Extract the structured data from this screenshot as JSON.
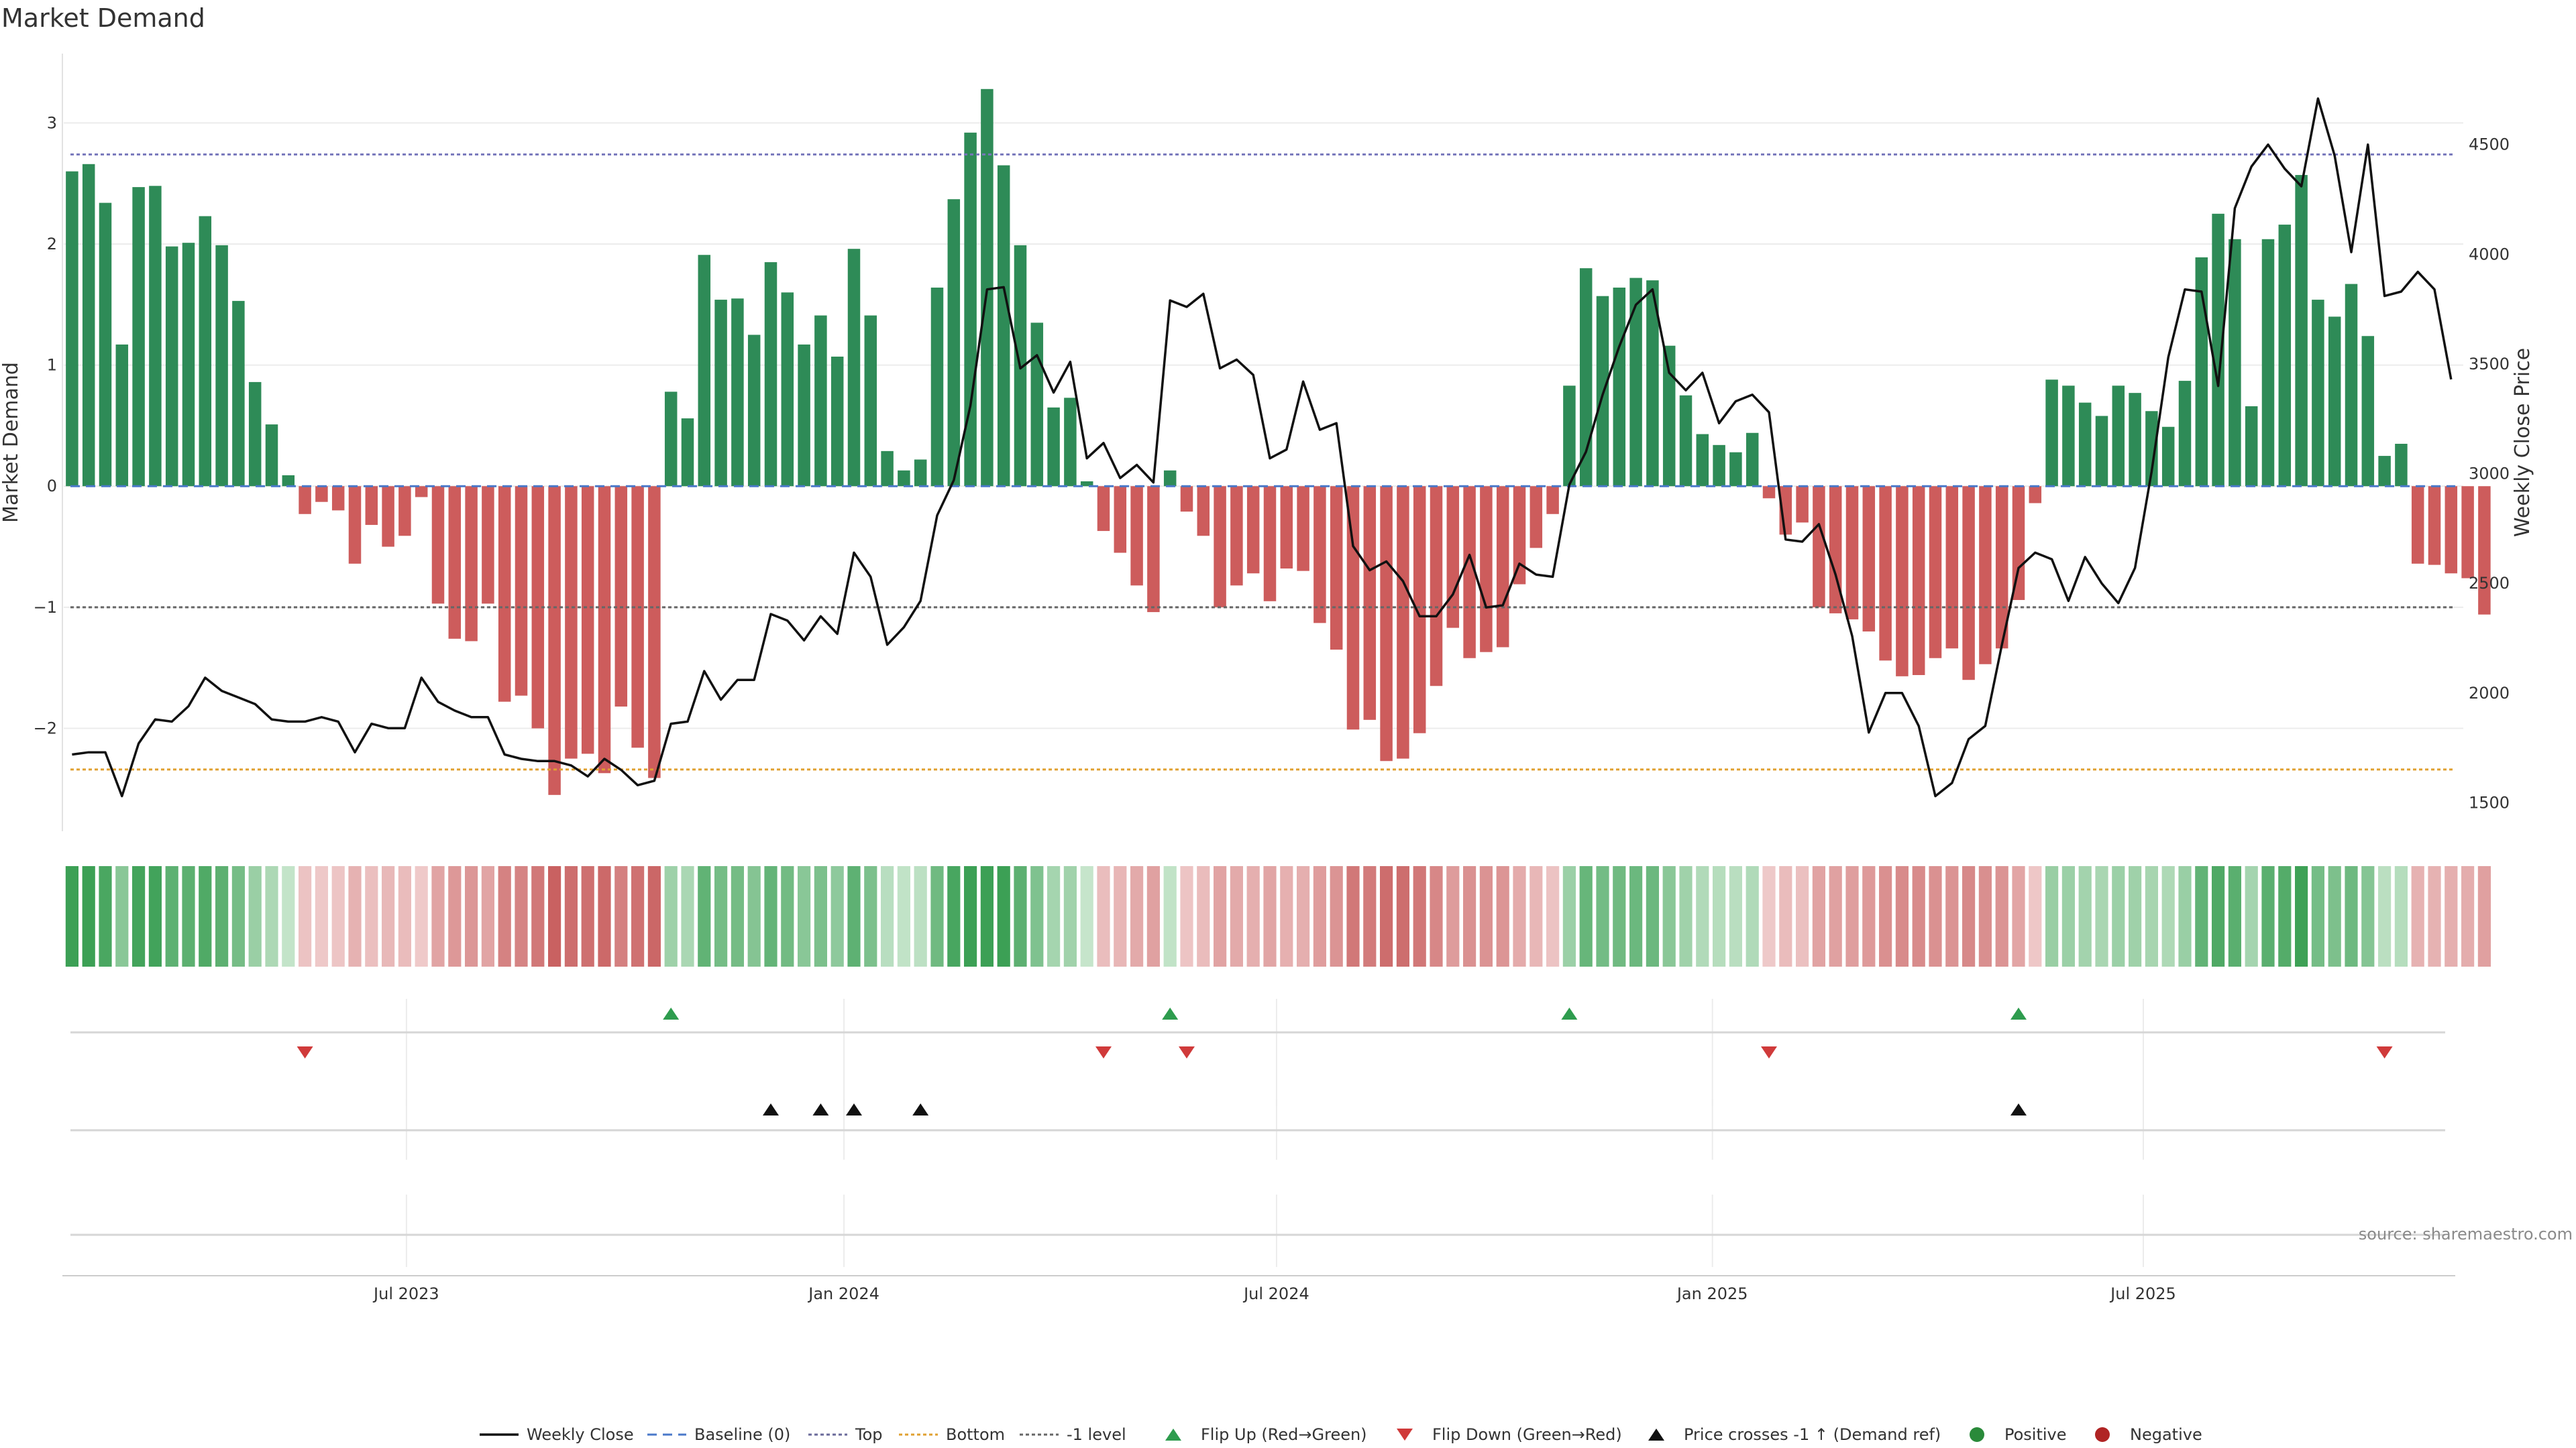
{
  "chart_data": {
    "type": "bar",
    "title": "Market Demand",
    "ylabel": "Market Demand",
    "y2label": "Weekly Close Price",
    "ylim": [
      -2.85,
      3.6
    ],
    "y2lim": [
      1370,
      4930
    ],
    "yticks": [
      3,
      2,
      1,
      0,
      -1,
      -2
    ],
    "ytick_labels": [
      "3",
      "2",
      "1",
      "0",
      "−1",
      "−2"
    ],
    "y2ticks": [
      4500,
      4000,
      3500,
      3000,
      2500,
      2000,
      1500
    ],
    "y2tick_labels": [
      "4500",
      "4000",
      "3500",
      "3000",
      "2500",
      "2000",
      "1500"
    ],
    "x_start": "2023-02-13",
    "weeks": 144,
    "xticks": [
      {
        "label": "Jul 2023",
        "week": 20.6
      },
      {
        "label": "Jan 2024",
        "week": 46.9
      },
      {
        "label": "Jul 2024",
        "week": 72.9
      },
      {
        "label": "Jan 2025",
        "week": 99.1
      },
      {
        "label": "Jul 2025",
        "week": 125.0
      }
    ],
    "reference_lines": {
      "top": 2.74,
      "baseline": 0,
      "minus_one": -1,
      "bottom": -2.34
    },
    "demand": [
      2.6,
      2.66,
      2.34,
      1.17,
      2.47,
      2.48,
      1.98,
      2.01,
      2.23,
      1.99,
      1.53,
      0.86,
      0.51,
      0.09,
      -0.23,
      -0.13,
      -0.2,
      -0.64,
      -0.32,
      -0.5,
      -0.41,
      -0.09,
      -0.97,
      -1.26,
      -1.28,
      -0.97,
      -1.78,
      -1.73,
      -2.0,
      -2.55,
      -2.25,
      -2.21,
      -2.37,
      -1.82,
      -2.16,
      -2.41,
      0.78,
      0.56,
      1.91,
      1.54,
      1.55,
      1.25,
      1.85,
      1.6,
      1.17,
      1.41,
      1.07,
      1.96,
      1.41,
      0.29,
      0.13,
      0.22,
      1.64,
      2.37,
      2.92,
      3.28,
      2.65,
      1.99,
      1.35,
      0.65,
      0.73,
      0.04,
      -0.37,
      -0.55,
      -0.82,
      -1.04,
      0.13,
      -0.21,
      -0.41,
      -1.0,
      -0.82,
      -0.72,
      -0.95,
      -0.68,
      -0.7,
      -1.13,
      -1.35,
      -2.01,
      -1.93,
      -2.27,
      -2.25,
      -2.04,
      -1.65,
      -1.17,
      -1.42,
      -1.37,
      -1.33,
      -0.81,
      -0.51,
      -0.23,
      0.83,
      1.8,
      1.57,
      1.64,
      1.72,
      1.7,
      1.16,
      0.75,
      0.43,
      0.34,
      0.28,
      0.44,
      -0.1,
      -0.4,
      -0.3,
      -1.0,
      -1.05,
      -1.1,
      -1.2,
      -1.44,
      -1.57,
      -1.56,
      -1.42,
      -1.34,
      -1.6,
      -1.47,
      -1.34,
      -0.94,
      -0.14,
      0.88,
      0.83,
      0.69,
      0.58,
      0.83,
      0.77,
      0.62,
      0.49,
      0.87,
      1.89,
      2.25,
      2.04,
      0.66,
      2.04,
      2.16,
      2.57,
      1.54,
      1.4,
      1.67,
      1.24,
      0.25,
      0.35,
      -0.64,
      -0.65,
      -0.72,
      -0.76,
      -1.06
    ],
    "price": [
      1720,
      1730,
      1730,
      1530,
      1770,
      1880,
      1870,
      1940,
      2070,
      2010,
      1980,
      1950,
      1880,
      1870,
      1870,
      1890,
      1870,
      1730,
      1860,
      1840,
      1840,
      2070,
      1960,
      1920,
      1890,
      1890,
      1720,
      1700,
      1690,
      1690,
      1670,
      1620,
      1700,
      1650,
      1580,
      1600,
      1860,
      1870,
      2100,
      1970,
      2060,
      2060,
      2360,
      2330,
      2240,
      2350,
      2270,
      2640,
      2530,
      2220,
      2300,
      2420,
      2810,
      2970,
      3310,
      3840,
      3850,
      3480,
      3540,
      3370,
      3510,
      3070,
      3140,
      2980,
      3040,
      2960,
      3790,
      3760,
      3820,
      3480,
      3520,
      3450,
      3070,
      3110,
      3420,
      3200,
      3230,
      2670,
      2560,
      2600,
      2510,
      2350,
      2350,
      2450,
      2630,
      2390,
      2400,
      2590,
      2540,
      2530,
      2950,
      3100,
      3360,
      3580,
      3770,
      3840,
      3460,
      3380,
      3460,
      3230,
      3330,
      3360,
      3280,
      2700,
      2690,
      2770,
      2540,
      2260,
      1820,
      2000,
      2000,
      1850,
      1530,
      1590,
      1790,
      1850,
      2220,
      2570,
      2640,
      2610,
      2420,
      2620,
      2500,
      2410,
      2570,
      3010,
      3530,
      3840,
      3830,
      3400,
      4210,
      4400,
      4500,
      4390,
      4310,
      4710,
      4450,
      4010,
      4500,
      3810,
      3830,
      3920,
      3840,
      3430
    ],
    "flip_up_weeks": [
      36,
      66,
      90,
      117
    ],
    "flip_down_weeks": [
      14,
      62,
      67,
      102,
      139
    ],
    "price_cross_weeks": [
      42,
      45,
      47,
      51,
      117
    ],
    "legend": [
      {
        "label": "Weekly Close",
        "symbol": "line",
        "color": "#111111"
      },
      {
        "label": "Baseline (0)",
        "symbol": "dash",
        "color": "#4a78c9"
      },
      {
        "label": "Top",
        "symbol": "dot",
        "color": "#6a6a9a"
      },
      {
        "label": "Bottom",
        "symbol": "dot",
        "color": "#e0a030"
      },
      {
        "label": "-1 level",
        "symbol": "dot",
        "color": "#666666"
      },
      {
        "label": "Flip Up (Red→Green)",
        "symbol": "triangle-up",
        "color": "#2e9c4e"
      },
      {
        "label": "Flip Down (Green→Red)",
        "symbol": "triangle-down",
        "color": "#d03a3a"
      },
      {
        "label": "Price crosses -1 ↑ (Demand ref)",
        "symbol": "triangle-up",
        "color": "#111111"
      },
      {
        "label": "Positive",
        "symbol": "circle",
        "color": "#2a8a3a"
      },
      {
        "label": "Negative",
        "symbol": "circle",
        "color": "#b02424"
      }
    ],
    "source": "source: sharemaestro.com"
  },
  "colors": {
    "positive_bar": "#2e8b57",
    "negative_bar": "#cd5c5c",
    "price_line": "#111111",
    "top_line": "#7777bb",
    "bottom_line": "#e0a030",
    "minus_one_line": "#666666",
    "baseline": "#4a78c9",
    "flip_up": "#2e9c4e",
    "flip_down": "#d03a3a",
    "price_cross": "#111111",
    "grid": "#ececec"
  }
}
